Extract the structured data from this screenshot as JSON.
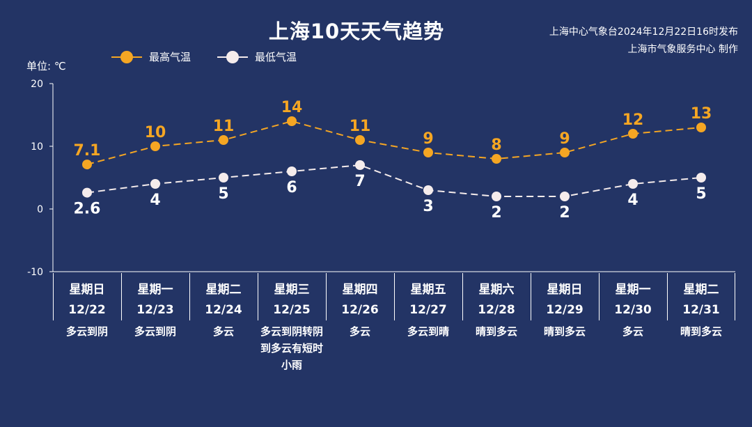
{
  "header": {
    "title": "上海10天天气趋势",
    "issuer_line1": "上海中心气象台2024年12月22日16时发布",
    "issuer_line2": "上海市气象服务中心 制作",
    "unit_label": "单位: ℃"
  },
  "colors": {
    "background": "#233465",
    "high": "#f5a623",
    "low": "#f5ecec",
    "axis": "#ffffff"
  },
  "chart_data": {
    "type": "line",
    "ylim": [
      -10,
      20
    ],
    "yticks": [
      -10,
      0,
      10,
      20
    ],
    "x": [
      "12/22",
      "12/23",
      "12/24",
      "12/25",
      "12/26",
      "12/27",
      "12/28",
      "12/29",
      "12/30",
      "12/31"
    ],
    "series": [
      {
        "name": "最高气温",
        "values": [
          7.1,
          10,
          11,
          14,
          11,
          9,
          8,
          9,
          12,
          13
        ],
        "labels": [
          "7.1",
          "10",
          "11",
          "14",
          "11",
          "9",
          "8",
          "9",
          "12",
          "13"
        ]
      },
      {
        "name": "最低气温",
        "values": [
          2.6,
          4,
          5,
          6,
          7,
          3,
          2,
          2,
          4,
          5
        ],
        "labels": [
          "2.6",
          "4",
          "5",
          "6",
          "7",
          "3",
          "2",
          "2",
          "4",
          "5"
        ]
      }
    ],
    "line_style": "dashed",
    "legend_position": "top-left"
  },
  "days": [
    {
      "weekday": "星期日",
      "date": "12/22",
      "weather": "多云到阴"
    },
    {
      "weekday": "星期一",
      "date": "12/23",
      "weather": "多云到阴"
    },
    {
      "weekday": "星期二",
      "date": "12/24",
      "weather": "多云"
    },
    {
      "weekday": "星期三",
      "date": "12/25",
      "weather": "多云到阴转阴到多云有短时小雨"
    },
    {
      "weekday": "星期四",
      "date": "12/26",
      "weather": "多云"
    },
    {
      "weekday": "星期五",
      "date": "12/27",
      "weather": "多云到晴"
    },
    {
      "weekday": "星期六",
      "date": "12/28",
      "weather": "晴到多云"
    },
    {
      "weekday": "星期日",
      "date": "12/29",
      "weather": "晴到多云"
    },
    {
      "weekday": "星期一",
      "date": "12/30",
      "weather": "多云"
    },
    {
      "weekday": "星期二",
      "date": "12/31",
      "weather": "晴到多云"
    }
  ]
}
